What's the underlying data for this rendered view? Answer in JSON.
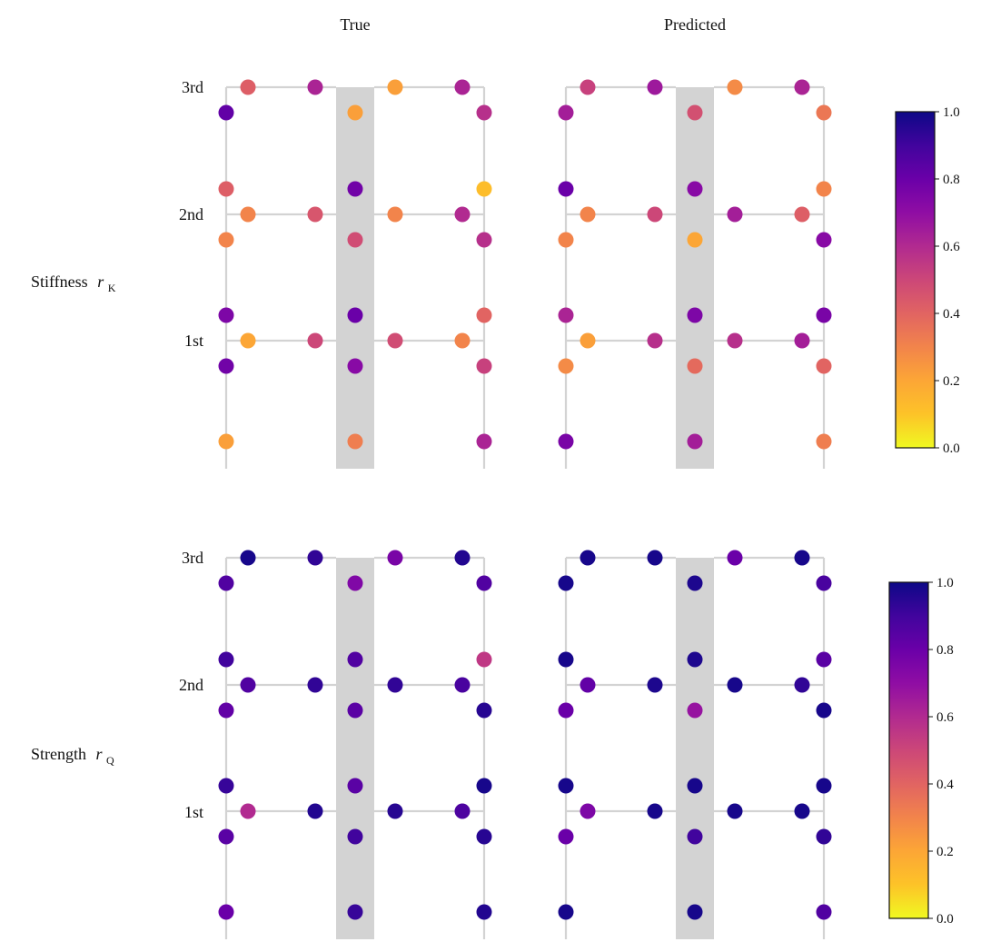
{
  "chart_data": {
    "type": "scatter",
    "title": "",
    "column_titles": [
      "True",
      "Predicted"
    ],
    "row_labels": [
      {
        "name": "Stiffness",
        "symbol": "r",
        "subscript": "K"
      },
      {
        "name": "Strength",
        "symbol": "r",
        "subscript": "Q"
      }
    ],
    "floor_labels": [
      "3rd",
      "2nd",
      "1st"
    ],
    "colormap": "plasma_r",
    "colorbar": {
      "range": [
        0.0,
        1.0
      ],
      "ticks": [
        "0.0",
        "0.2",
        "0.4",
        "0.6",
        "0.8",
        "1.0"
      ]
    },
    "node_order": [
      "3F-beam-L1",
      "3F-beam-L2",
      "3F-beam-R1",
      "3F-beam-R2",
      "3F-col-L",
      "3F-col-C",
      "3F-col-R",
      "2F-col-L-top",
      "2F-col-C-top",
      "2F-col-R-top",
      "2F-beam-L1",
      "2F-beam-L2",
      "2F-beam-R1",
      "2F-beam-R2",
      "2F-col-L-bot",
      "2F-col-C-bot",
      "2F-col-R-bot",
      "1F-col-L-top",
      "1F-col-C-top",
      "1F-col-R-top",
      "1F-beam-L1",
      "1F-beam-L2",
      "1F-beam-R1",
      "1F-beam-R2",
      "1F-col-L-bot",
      "1F-col-C-bot",
      "1F-col-R-bot",
      "base-L",
      "base-C",
      "base-R"
    ],
    "panels": [
      {
        "row": 0,
        "col": 0,
        "name": "stiffness-true",
        "values": [
          0.42,
          0.62,
          0.22,
          0.62,
          0.82,
          0.22,
          0.58,
          0.42,
          0.78,
          0.12,
          0.3,
          0.45,
          0.3,
          0.6,
          0.3,
          0.48,
          0.58,
          0.75,
          0.8,
          0.4,
          0.2,
          0.5,
          0.48,
          0.3,
          0.78,
          0.72,
          0.52,
          0.22,
          0.32,
          0.62
        ]
      },
      {
        "row": 0,
        "col": 1,
        "name": "stiffness-predicted",
        "values": [
          0.52,
          0.66,
          0.28,
          0.62,
          0.64,
          0.47,
          0.34,
          0.8,
          0.72,
          0.3,
          0.3,
          0.5,
          0.64,
          0.42,
          0.3,
          0.2,
          0.72,
          0.62,
          0.75,
          0.76,
          0.22,
          0.58,
          0.58,
          0.64,
          0.28,
          0.38,
          0.4,
          0.76,
          0.64,
          0.32
        ]
      },
      {
        "row": 1,
        "col": 0,
        "name": "strength-true",
        "values": [
          0.98,
          0.93,
          0.76,
          0.96,
          0.86,
          0.74,
          0.86,
          0.9,
          0.86,
          0.55,
          0.86,
          0.93,
          0.93,
          0.88,
          0.82,
          0.84,
          0.95,
          0.92,
          0.84,
          0.98,
          0.6,
          0.96,
          0.95,
          0.87,
          0.84,
          0.9,
          0.95,
          0.8,
          0.92,
          0.96
        ]
      },
      {
        "row": 1,
        "col": 1,
        "name": "strength-predicted",
        "values": [
          0.98,
          0.98,
          0.8,
          0.98,
          0.98,
          0.97,
          0.88,
          0.98,
          0.97,
          0.84,
          0.82,
          0.97,
          0.98,
          0.93,
          0.8,
          0.68,
          0.98,
          0.98,
          0.98,
          0.98,
          0.75,
          0.98,
          0.98,
          0.98,
          0.8,
          0.9,
          0.93,
          0.98,
          0.98,
          0.86
        ]
      }
    ]
  }
}
